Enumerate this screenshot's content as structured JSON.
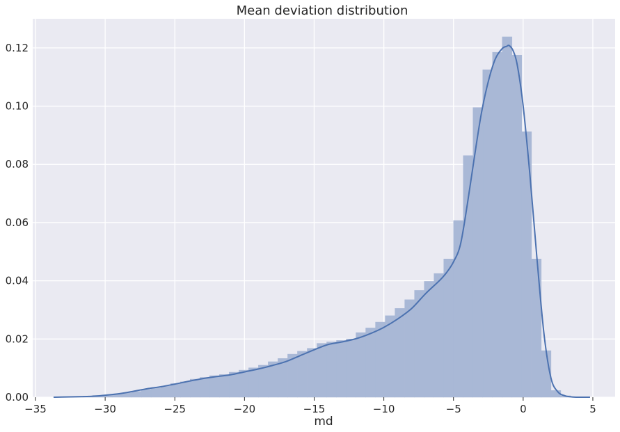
{
  "colors": {
    "plot_background": "#eaeaf2",
    "grid": "#ffffff",
    "bar_fill": "#a9b8d6",
    "kde_line": "#4c72b0",
    "text": "#262626"
  },
  "chart_data": {
    "type": "bar",
    "title": "Mean deviation distribution",
    "xlabel": "md",
    "ylabel": "",
    "xlim": [
      -35.2,
      6.6
    ],
    "ylim": [
      0,
      0.13
    ],
    "grid": true,
    "x_ticks": [
      -35,
      -30,
      -25,
      -20,
      -15,
      -10,
      -5,
      0,
      5
    ],
    "x_tick_labels": [
      "−35",
      "−30",
      "−25",
      "−20",
      "−15",
      "−10",
      "−5",
      "0",
      "5"
    ],
    "y_ticks": [
      0,
      0.02,
      0.04,
      0.06,
      0.08,
      0.1,
      0.12
    ],
    "y_tick_labels": [
      "0.00",
      "0.02",
      "0.04",
      "0.06",
      "0.08",
      "0.10",
      "0.12"
    ],
    "histogram": {
      "bin_edges": [
        -33.7,
        -33.0,
        -32.3,
        -31.6,
        -30.9,
        -30.2,
        -29.5,
        -28.8,
        -28.1,
        -27.4,
        -26.7,
        -26.0,
        -25.3,
        -24.6,
        -23.9,
        -23.2,
        -22.5,
        -21.8,
        -21.1,
        -20.4,
        -19.7,
        -19.0,
        -18.3,
        -17.6,
        -16.9,
        -16.2,
        -15.5,
        -14.8,
        -14.1,
        -13.4,
        -12.7,
        -12.0,
        -11.3,
        -10.6,
        -9.9,
        -9.2,
        -8.5,
        -7.8,
        -7.1,
        -6.4,
        -5.7,
        -5.0,
        -4.3,
        -3.6,
        -2.9,
        -2.2,
        -1.5,
        -0.8,
        -0.1,
        0.6,
        1.3,
        2.0,
        2.7,
        3.4,
        4.1,
        4.8
      ],
      "values": [
        0.0001,
        0.0002,
        0.0003,
        0.0004,
        0.0006,
        0.0008,
        0.0011,
        0.0015,
        0.002,
        0.0027,
        0.0032,
        0.0038,
        0.0047,
        0.0053,
        0.0062,
        0.0068,
        0.0074,
        0.0078,
        0.0086,
        0.0093,
        0.0101,
        0.011,
        0.0122,
        0.0133,
        0.0148,
        0.0158,
        0.0168,
        0.0185,
        0.019,
        0.0195,
        0.02,
        0.0222,
        0.0238,
        0.0258,
        0.028,
        0.0305,
        0.0335,
        0.0367,
        0.0398,
        0.0425,
        0.0475,
        0.0607,
        0.083,
        0.0995,
        0.1125,
        0.1185,
        0.1238,
        0.1175,
        0.0912,
        0.0475,
        0.016,
        0.0023,
        0.0005,
        0.0001,
        0.0
      ]
    },
    "series": [
      {
        "type": "line",
        "x": [
          -33.7,
          -31.0,
          -30.0,
          -29.0,
          -28.0,
          -27.0,
          -26.0,
          -25.0,
          -24.0,
          -23.0,
          -22.0,
          -21.0,
          -20.0,
          -19.0,
          -18.0,
          -17.0,
          -16.0,
          -15.0,
          -14.0,
          -13.0,
          -12.0,
          -11.0,
          -10.0,
          -9.0,
          -8.0,
          -7.0,
          -6.0,
          -5.5,
          -5.0,
          -4.5,
          -4.0,
          -3.5,
          -3.0,
          -2.5,
          -2.0,
          -1.5,
          -1.2,
          -1.0,
          -0.7,
          -0.4,
          0.0,
          0.5,
          1.0,
          1.5,
          2.0,
          2.5,
          3.0,
          3.5,
          4.0,
          4.8
        ],
        "y": [
          0.0,
          0.0003,
          0.0007,
          0.0012,
          0.002,
          0.0029,
          0.0036,
          0.0045,
          0.0055,
          0.0064,
          0.0071,
          0.0077,
          0.0087,
          0.0097,
          0.0109,
          0.0123,
          0.0143,
          0.0163,
          0.0181,
          0.019,
          0.0201,
          0.0218,
          0.024,
          0.0269,
          0.0305,
          0.0356,
          0.0401,
          0.0428,
          0.0465,
          0.0525,
          0.0665,
          0.0825,
          0.0975,
          0.1085,
          0.1162,
          0.1198,
          0.1205,
          0.1208,
          0.1188,
          0.1135,
          0.1,
          0.0755,
          0.0471,
          0.0215,
          0.0065,
          0.0018,
          0.0005,
          0.0001,
          0.0,
          0.0
        ]
      }
    ]
  }
}
